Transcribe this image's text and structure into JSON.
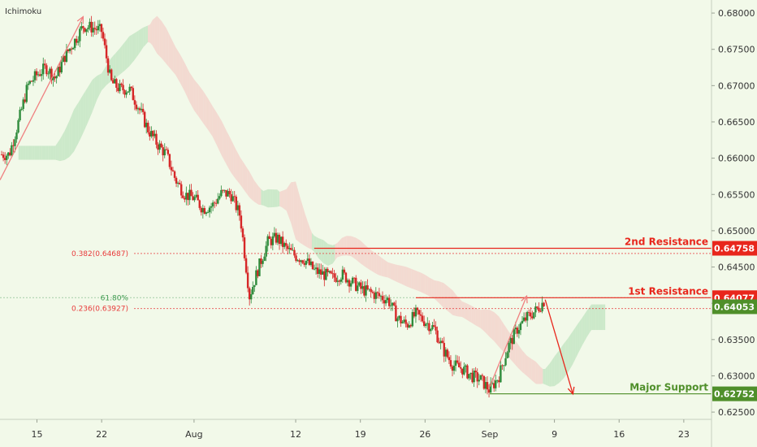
{
  "indicator_label": "Ichimoku",
  "colors": {
    "background": "#f2f9e9",
    "bull": "#2e8b3b",
    "bear": "#d62728",
    "resistance": "#e8261c",
    "support": "#4f8f2a",
    "fib": "#e83a3a",
    "cloud_bull": "#bfe3bf",
    "cloud_bear": "#f3cfc8",
    "arrow_pink": "#f08080",
    "arrow_red": "#e8261c",
    "current_price_bg": "#4f8f2a"
  },
  "chart_data": {
    "type": "line",
    "title": "",
    "ylabel": "",
    "xlabel": "",
    "ylim": [
      0.624,
      0.6818
    ],
    "x_range_days": [
      "Jul 11",
      "Sep 26"
    ],
    "y_ticks": [
      "0.68000",
      "0.67500",
      "0.67000",
      "0.66500",
      "0.66000",
      "0.65500",
      "0.65000",
      "0.64500",
      "0.64000",
      "0.63500",
      "0.63000",
      "0.62500"
    ],
    "x_ticks": [
      {
        "label": "15",
        "date": "Jul 15"
      },
      {
        "label": "22",
        "date": "Jul 22"
      },
      {
        "label": "Aug",
        "date": "Aug 1"
      },
      {
        "label": "12",
        "date": "Aug 12"
      },
      {
        "label": "19",
        "date": "Aug 19"
      },
      {
        "label": "26",
        "date": "Aug 26"
      },
      {
        "label": "Sep",
        "date": "Sep 2"
      },
      {
        "label": "9",
        "date": "Sep 9"
      },
      {
        "label": "16",
        "date": "Sep 16"
      },
      {
        "label": "23",
        "date": "Sep 23"
      }
    ],
    "series": [
      {
        "values_approx": [
          {
            "date": "Jul 11",
            "close": 0.6605
          },
          {
            "date": "Jul 12",
            "close": 0.6605
          },
          {
            "date": "Jul 13",
            "close": 0.665
          },
          {
            "date": "Jul 14",
            "close": 0.67
          },
          {
            "date": "Jul 15",
            "close": 0.6715
          },
          {
            "date": "Jul 16",
            "close": 0.6725
          },
          {
            "date": "Jul 17",
            "close": 0.671
          },
          {
            "date": "Jul 18",
            "close": 0.674
          },
          {
            "date": "Jul 19",
            "close": 0.676
          },
          {
            "date": "Jul 20",
            "close": 0.6782
          },
          {
            "date": "Jul 21",
            "close": 0.678
          },
          {
            "date": "Jul 22",
            "close": 0.6775
          },
          {
            "date": "Jul 23",
            "close": 0.6705
          },
          {
            "date": "Jul 24",
            "close": 0.6695
          },
          {
            "date": "Jul 25",
            "close": 0.6695
          },
          {
            "date": "Jul 26",
            "close": 0.667
          },
          {
            "date": "Jul 27",
            "close": 0.664
          },
          {
            "date": "Jul 28",
            "close": 0.662
          },
          {
            "date": "Jul 29",
            "close": 0.6605
          },
          {
            "date": "Jul 30",
            "close": 0.657
          },
          {
            "date": "Jul 31",
            "close": 0.655
          },
          {
            "date": "Aug 1",
            "close": 0.6545
          },
          {
            "date": "Aug 2",
            "close": 0.653
          },
          {
            "date": "Aug 3",
            "close": 0.6535
          },
          {
            "date": "Aug 4",
            "close": 0.6552
          },
          {
            "date": "Aug 5",
            "close": 0.655
          },
          {
            "date": "Aug 6",
            "close": 0.652
          },
          {
            "date": "Aug 7",
            "close": 0.641
          },
          {
            "date": "Aug 8",
            "close": 0.645
          },
          {
            "date": "Aug 9",
            "close": 0.6485
          },
          {
            "date": "Aug 10",
            "close": 0.649
          },
          {
            "date": "Aug 11",
            "close": 0.6475
          },
          {
            "date": "Aug 12",
            "close": 0.6465
          },
          {
            "date": "Aug 13",
            "close": 0.646
          },
          {
            "date": "Aug 14",
            "close": 0.6445
          },
          {
            "date": "Aug 15",
            "close": 0.644
          },
          {
            "date": "Aug 16",
            "close": 0.6435
          },
          {
            "date": "Aug 17",
            "close": 0.644
          },
          {
            "date": "Aug 18",
            "close": 0.643
          },
          {
            "date": "Aug 19",
            "close": 0.642
          },
          {
            "date": "Aug 20",
            "close": 0.6415
          },
          {
            "date": "Aug 21",
            "close": 0.641
          },
          {
            "date": "Aug 22",
            "close": 0.6405
          },
          {
            "date": "Aug 23",
            "close": 0.638
          },
          {
            "date": "Aug 24",
            "close": 0.637
          },
          {
            "date": "Aug 25",
            "close": 0.6385
          },
          {
            "date": "Aug 26",
            "close": 0.6375
          },
          {
            "date": "Aug 27",
            "close": 0.6365
          },
          {
            "date": "Aug 28",
            "close": 0.6335
          },
          {
            "date": "Aug 29",
            "close": 0.6315
          },
          {
            "date": "Aug 30",
            "close": 0.631
          },
          {
            "date": "Aug 31",
            "close": 0.63
          },
          {
            "date": "Sep 1",
            "close": 0.6295
          },
          {
            "date": "Sep 2",
            "close": 0.628
          },
          {
            "date": "Sep 3",
            "close": 0.63
          },
          {
            "date": "Sep 4",
            "close": 0.634
          },
          {
            "date": "Sep 5",
            "close": 0.6365
          },
          {
            "date": "Sep 6",
            "close": 0.638
          },
          {
            "date": "Sep 7",
            "close": 0.639
          },
          {
            "date": "Sep 8",
            "close": 0.6405
          }
        ]
      }
    ],
    "horizontal_levels": [
      {
        "label": "2nd Resistance",
        "price": "0.64758",
        "value": 0.64758,
        "role": "resistance",
        "from_date": "Aug 14",
        "to_date": "Sep 26"
      },
      {
        "label": "1st Resistance",
        "price": "0.64077",
        "value": 0.64077,
        "role": "resistance",
        "from_date": "Aug 25",
        "to_date": "Sep 26"
      },
      {
        "label": "Major Support",
        "price": "0.62752",
        "value": 0.62752,
        "role": "support",
        "from_date": "Sep 2",
        "to_date": "Sep 26"
      }
    ],
    "current_price": {
      "price": "0.64053",
      "value": 0.64053
    },
    "fib_levels": [
      {
        "label": "0.382(0.64687)",
        "value": 0.64687
      },
      {
        "label": "0.236(0.63927)",
        "value": 0.63927
      },
      {
        "label": "61.80%",
        "value": 0.64077
      }
    ],
    "annotations": [
      {
        "type": "arrow",
        "from": {
          "date": "Jul 11",
          "value": 0.657
        },
        "to": {
          "date": "Jul 20",
          "value": 0.6795
        },
        "color": "pink"
      },
      {
        "type": "arrow",
        "from": {
          "date": "Sep 2",
          "value": 0.6285
        },
        "to": {
          "date": "Sep 6",
          "value": 0.641
        },
        "color": "pink"
      },
      {
        "type": "arrow",
        "from": {
          "date": "Sep 8",
          "value": 0.6405
        },
        "to": {
          "date": "Sep 11",
          "value": 0.6275
        },
        "color": "red"
      }
    ],
    "grid": false
  }
}
